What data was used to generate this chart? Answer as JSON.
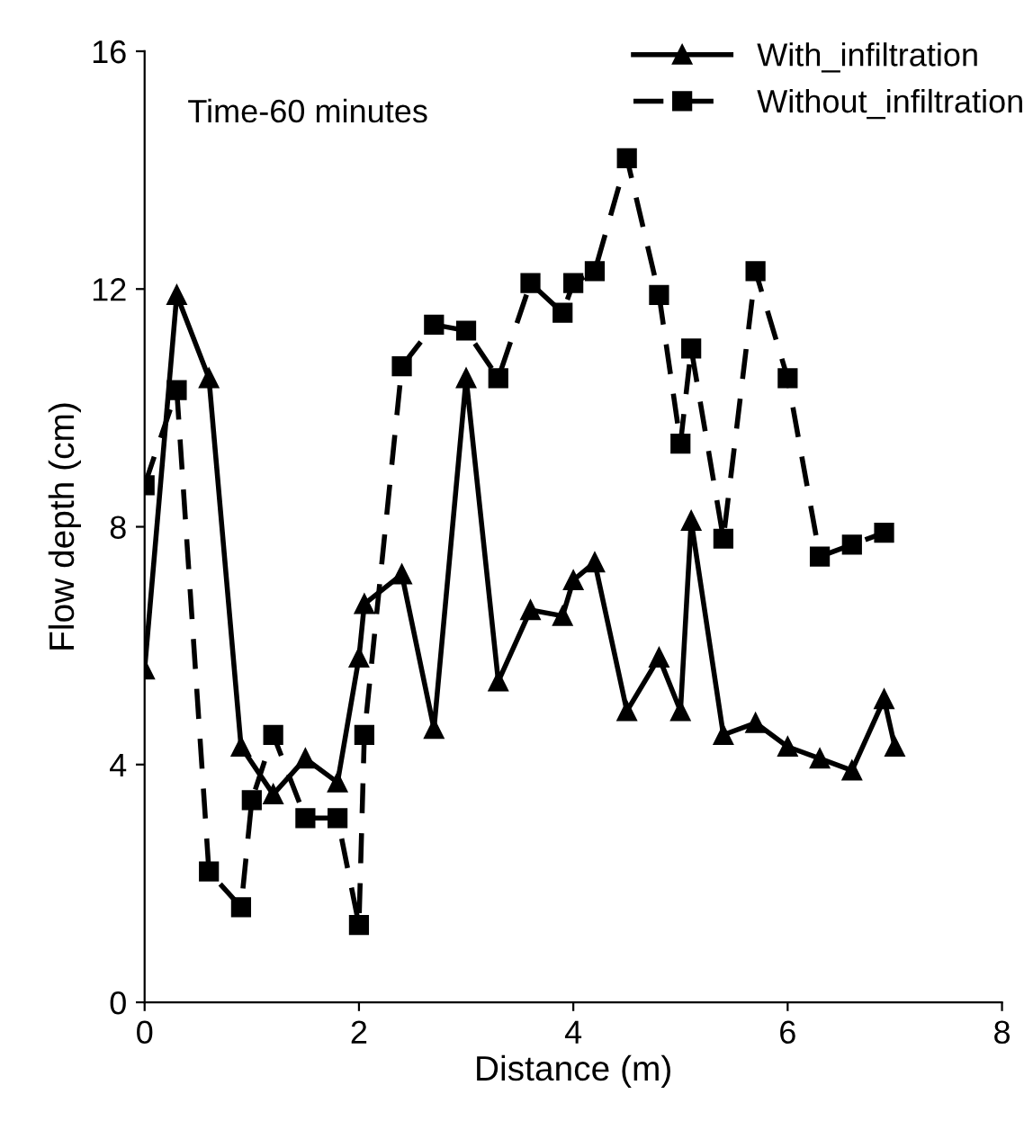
{
  "chart_data": {
    "type": "line",
    "xlabel": "Distance (m)",
    "ylabel": "Flow depth (cm)",
    "annotations": [
      "Time-60 minutes"
    ],
    "xlim": [
      0,
      8
    ],
    "xticks": [
      0,
      2,
      4,
      6,
      8
    ],
    "ylim": [
      0,
      16
    ],
    "yticks": [
      0,
      4,
      8,
      12,
      16
    ],
    "grid": false,
    "legend": "top right",
    "series": [
      {
        "name": "With_infiltration",
        "color": "#000000",
        "marker": "triangle",
        "line_style": "solid",
        "x": [
          0,
          0.3,
          0.6,
          0.9,
          1.2,
          1.5,
          1.8,
          2.0,
          2.05,
          2.4,
          2.7,
          3.0,
          3.3,
          3.6,
          3.9,
          4.0,
          4.2,
          4.5,
          4.8,
          5.0,
          5.1,
          5.4,
          5.7,
          6.0,
          6.3,
          6.6,
          6.9,
          7.0
        ],
        "values": [
          5.6,
          11.9,
          10.5,
          4.3,
          3.5,
          4.1,
          3.7,
          5.8,
          6.7,
          7.2,
          4.6,
          10.5,
          5.4,
          6.6,
          6.5,
          7.1,
          7.4,
          4.9,
          5.8,
          4.9,
          8.1,
          4.5,
          4.7,
          4.3,
          4.1,
          3.9,
          5.1,
          4.3
        ]
      },
      {
        "name": "Without_infiltration",
        "color": "#000000",
        "marker": "square",
        "line_style": "dashed",
        "x": [
          0,
          0.3,
          0.6,
          0.9,
          1.0,
          1.2,
          1.5,
          1.8,
          2.0,
          2.05,
          2.4,
          2.7,
          3.0,
          3.3,
          3.6,
          3.9,
          4.0,
          4.2,
          4.5,
          4.8,
          5.0,
          5.1,
          5.4,
          5.7,
          6.0,
          6.3,
          6.6,
          6.9
        ],
        "values": [
          8.7,
          10.3,
          2.2,
          1.6,
          3.4,
          4.5,
          3.1,
          3.1,
          1.3,
          4.5,
          10.7,
          11.4,
          11.3,
          10.5,
          12.1,
          11.6,
          12.1,
          12.3,
          14.2,
          11.9,
          9.4,
          11.0,
          7.8,
          12.3,
          10.5,
          7.5,
          7.7,
          7.9
        ]
      }
    ]
  }
}
